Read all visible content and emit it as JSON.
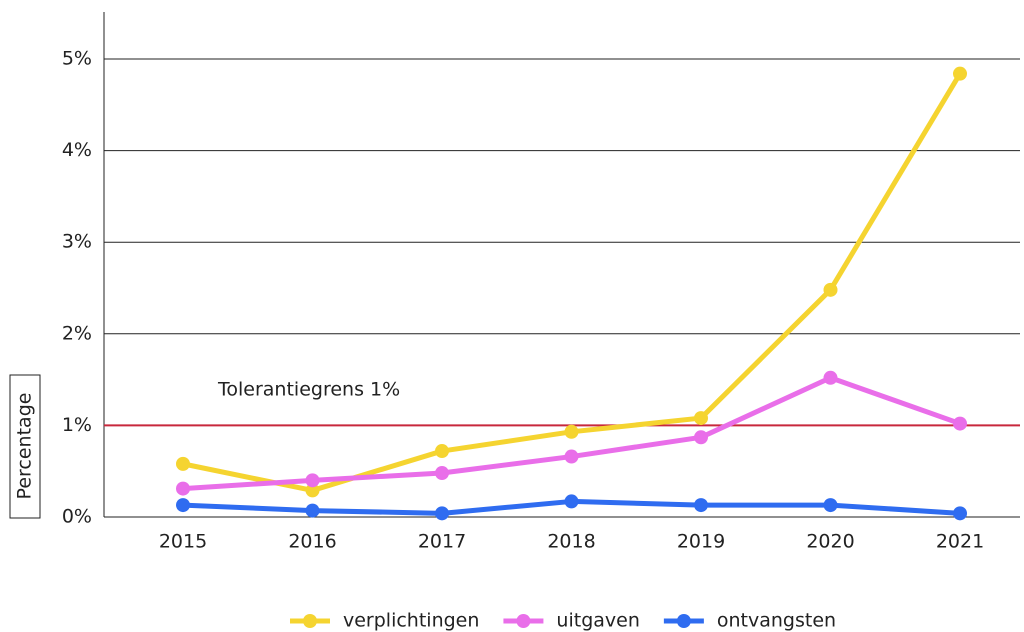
{
  "chart_data": {
    "type": "line",
    "categories": [
      "2015",
      "2016",
      "2017",
      "2018",
      "2019",
      "2020",
      "2021"
    ],
    "series": [
      {
        "name": "verplichtingen",
        "color": "#f5d430",
        "values": [
          0.58,
          0.29,
          0.72,
          0.93,
          1.08,
          2.48,
          4.84
        ]
      },
      {
        "name": "uitgaven",
        "color": "#e96ee9",
        "values": [
          0.31,
          0.4,
          0.48,
          0.66,
          0.87,
          1.52,
          1.02
        ]
      },
      {
        "name": "ontvangsten",
        "color": "#2f6cf0",
        "values": [
          0.13,
          0.07,
          0.04,
          0.17,
          0.13,
          0.13,
          0.04
        ]
      }
    ],
    "ylabel": "Percentage",
    "ylim": [
      0,
      5.5
    ],
    "yticks": [
      {
        "value": 0,
        "label": "0%"
      },
      {
        "value": 1,
        "label": "1%"
      },
      {
        "value": 2,
        "label": "2%"
      },
      {
        "value": 3,
        "label": "3%"
      },
      {
        "value": 4,
        "label": "4%"
      },
      {
        "value": 5,
        "label": "5%"
      }
    ],
    "grid": true,
    "threshold": {
      "value": 1,
      "label": "Tolerantiegrens 1%",
      "color": "#c8283c"
    },
    "legend": "bottom"
  }
}
